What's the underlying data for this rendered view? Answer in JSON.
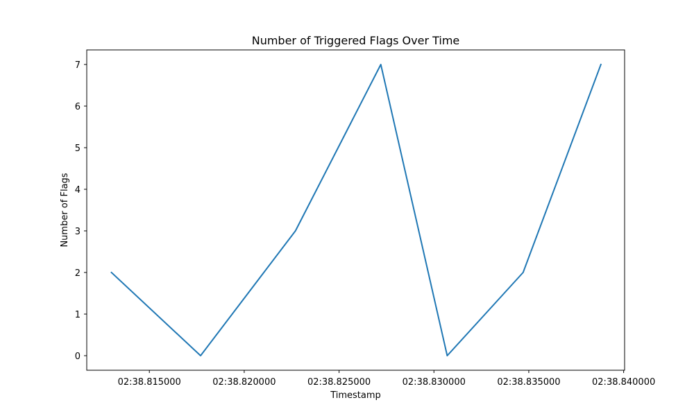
{
  "chart_data": {
    "type": "line",
    "title": "Number of Triggered Flags Over Time",
    "xlabel": "Timestamp",
    "ylabel": "Number of Flags",
    "x_tick_labels": [
      "02:38.815000",
      "02:38.820000",
      "02:38.825000",
      "02:38.830000",
      "02:38.835000",
      "02:38.840000"
    ],
    "x_ticks": [
      "02:38.815000",
      "02:38.820000",
      "02:38.825000",
      "02:38.830000",
      "02:38.835000",
      "02:38.840000"
    ],
    "y_ticks": [
      0,
      1,
      2,
      3,
      4,
      5,
      6,
      7
    ],
    "xlim": [
      "02:38.811700",
      "02:38.840050"
    ],
    "ylim": [
      -0.35,
      7.35
    ],
    "grid": false,
    "series": [
      {
        "x": [
          "02:38.813000",
          "02:38.817700",
          "02:38.822700",
          "02:38.827200",
          "02:38.830700",
          "02:38.834700",
          "02:38.838800"
        ],
        "y": [
          2,
          0,
          3,
          7,
          0,
          2,
          7
        ],
        "color": "#1f77b4"
      }
    ]
  }
}
